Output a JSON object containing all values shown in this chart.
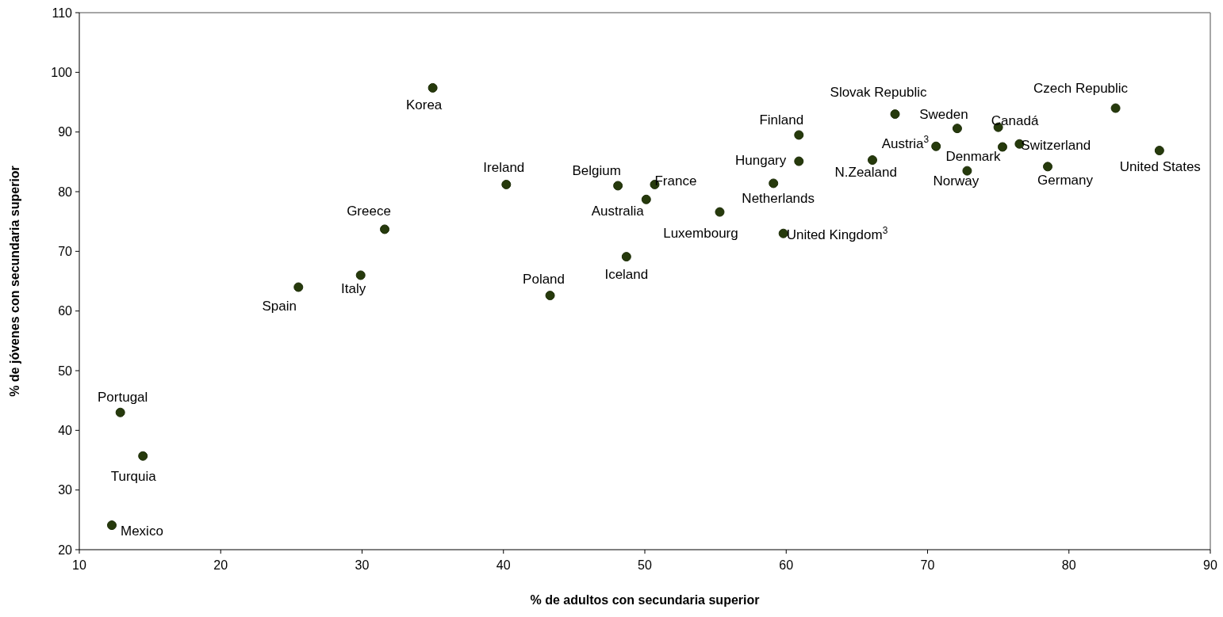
{
  "chart_data": {
    "type": "scatter",
    "xlabel": "% de adultos con secundaria superior",
    "ylabel": "% de jóvenes con secundaria superior",
    "xlim": [
      10,
      90
    ],
    "xticks": [
      10,
      20,
      30,
      40,
      50,
      60,
      70,
      80,
      90
    ],
    "ylim": [
      20,
      110
    ],
    "yticks": [
      20,
      30,
      40,
      50,
      60,
      70,
      80,
      90,
      100,
      110
    ],
    "grid": false,
    "marker": "circle",
    "series": [
      {
        "color": "#263a0c",
        "x": [
          35.0,
          31.6,
          29.9,
          25.5,
          12.9,
          14.5,
          12.3,
          40.2,
          48.1,
          50.7,
          50.1,
          55.3,
          59.1,
          60.9,
          60.9,
          59.8,
          48.7,
          43.3,
          67.7,
          66.1,
          70.6,
          72.1,
          75.0,
          75.3,
          72.8,
          76.5,
          78.5,
          83.3,
          86.4
        ],
        "values": [
          97.4,
          73.7,
          66.0,
          64.0,
          43.0,
          35.7,
          24.1,
          81.2,
          81.0,
          81.2,
          78.7,
          76.6,
          81.4,
          89.5,
          85.1,
          73.0,
          69.1,
          62.6,
          93.0,
          85.3,
          87.6,
          90.6,
          90.8,
          87.5,
          83.5,
          88.0,
          84.2,
          94.0,
          86.9
        ]
      }
    ],
    "annotations": [
      {
        "text": "Korea",
        "x": 35.0,
        "y": 97.4
      },
      {
        "text": "Greece",
        "x": 31.6,
        "y": 73.7
      },
      {
        "text": "Italy",
        "x": 29.9,
        "y": 66.0
      },
      {
        "text": "Spain",
        "x": 25.5,
        "y": 64.0
      },
      {
        "text": "Portugal",
        "x": 12.9,
        "y": 43.0
      },
      {
        "text": "Turquia",
        "x": 14.5,
        "y": 35.7
      },
      {
        "text": "Mexico",
        "x": 12.3,
        "y": 24.1
      },
      {
        "text": "Ireland",
        "x": 40.2,
        "y": 81.2
      },
      {
        "text": "Belgium",
        "x": 48.1,
        "y": 81.0
      },
      {
        "text": "France",
        "x": 50.7,
        "y": 81.2
      },
      {
        "text": "Australia",
        "x": 50.1,
        "y": 78.7
      },
      {
        "text": "Luxembourg",
        "x": 55.3,
        "y": 76.6
      },
      {
        "text": "Netherlands",
        "x": 59.1,
        "y": 81.4
      },
      {
        "text": "Finland",
        "x": 60.9,
        "y": 89.5
      },
      {
        "text": "Hungary",
        "x": 60.9,
        "y": 85.1
      },
      {
        "text": "United Kingdom$^{3}$",
        "x": 59.8,
        "y": 73.0
      },
      {
        "text": "Iceland",
        "x": 48.7,
        "y": 69.1
      },
      {
        "text": "Poland",
        "x": 43.3,
        "y": 62.6
      },
      {
        "text": "Slovak Republic",
        "x": 67.7,
        "y": 93.0
      },
      {
        "text": "N.Zealand",
        "x": 66.1,
        "y": 85.3
      },
      {
        "text": "Austria$^{3}$",
        "x": 70.6,
        "y": 87.6
      },
      {
        "text": "Sweden",
        "x": 72.1,
        "y": 90.6
      },
      {
        "text": "Canadá",
        "x": 75.0,
        "y": 90.8
      },
      {
        "text": "Denmark",
        "x": 75.3,
        "y": 87.5
      },
      {
        "text": "Norway",
        "x": 72.8,
        "y": 83.5
      },
      {
        "text": "Switzerland",
        "x": 76.5,
        "y": 88.0
      },
      {
        "text": "Germany",
        "x": 78.5,
        "y": 84.2
      },
      {
        "text": "Czech Republic",
        "x": 83.3,
        "y": 94.0
      },
      {
        "text": "United States",
        "x": 86.4,
        "y": 86.9
      }
    ]
  }
}
